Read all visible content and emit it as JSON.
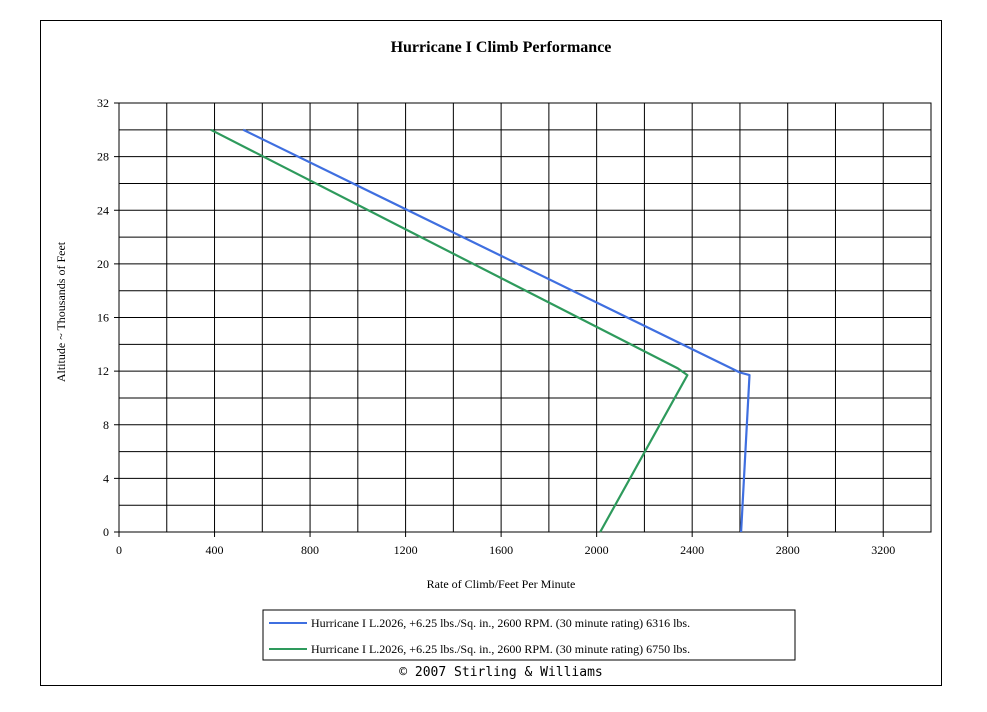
{
  "chart_data": {
    "type": "line",
    "title": "Hurricane I Climb Performance",
    "xlabel": "Rate of Climb/Feet Per Minute",
    "ylabel": "Altitude ~ Thousands of Feet",
    "xlim": [
      0,
      3400
    ],
    "ylim": [
      0,
      32
    ],
    "x_ticks": [
      0,
      400,
      800,
      1200,
      1600,
      2000,
      2400,
      2800,
      3200
    ],
    "y_ticks": [
      0,
      4,
      8,
      12,
      16,
      20,
      24,
      28,
      32
    ],
    "x_minor_step": 200,
    "y_minor_step": 2,
    "grid": true,
    "legend_position": "bottom",
    "series": [
      {
        "name": "Hurricane I L.2026, +6.25 lbs./Sq. in., 2600 RPM. (30 minute rating) 6316 lbs.",
        "color": "#3f6fe0",
        "points": [
          [
            2605,
            0
          ],
          [
            2640,
            11.7
          ],
          [
            2600,
            11.9
          ],
          [
            520,
            30
          ]
        ]
      },
      {
        "name": "Hurricane I L.2026, +6.25 lbs./Sq. in., 2600 RPM. (30 minute rating) 6750 lbs.",
        "color": "#2e9a5c",
        "points": [
          [
            2015,
            0
          ],
          [
            2380,
            11.7
          ],
          [
            2340,
            12.2
          ],
          [
            385,
            30
          ]
        ]
      }
    ]
  },
  "footer": {
    "copyright": "© 2007 Stirling & Williams"
  }
}
